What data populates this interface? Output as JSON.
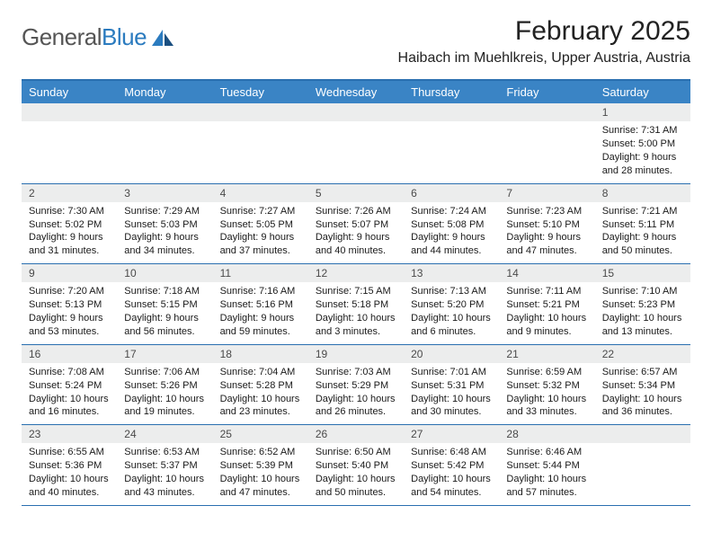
{
  "brand": {
    "name_part1": "General",
    "name_part2": "Blue"
  },
  "title": "February 2025",
  "location": "Haibach im Muehlkreis, Upper Austria, Austria",
  "colors": {
    "header_bg": "#3a84c5",
    "divider": "#2a6fb0",
    "daynum_bg": "#eceded",
    "logo_blue": "#2b7bbf",
    "logo_dark": "#1a4f80"
  },
  "day_headers": [
    "Sunday",
    "Monday",
    "Tuesday",
    "Wednesday",
    "Thursday",
    "Friday",
    "Saturday"
  ],
  "weeks": [
    {
      "nums": [
        "",
        "",
        "",
        "",
        "",
        "",
        "1"
      ],
      "cells": [
        null,
        null,
        null,
        null,
        null,
        null,
        {
          "sunrise": "7:31 AM",
          "sunset": "5:00 PM",
          "daylight": "9 hours and 28 minutes."
        }
      ]
    },
    {
      "nums": [
        "2",
        "3",
        "4",
        "5",
        "6",
        "7",
        "8"
      ],
      "cells": [
        {
          "sunrise": "7:30 AM",
          "sunset": "5:02 PM",
          "daylight": "9 hours and 31 minutes."
        },
        {
          "sunrise": "7:29 AM",
          "sunset": "5:03 PM",
          "daylight": "9 hours and 34 minutes."
        },
        {
          "sunrise": "7:27 AM",
          "sunset": "5:05 PM",
          "daylight": "9 hours and 37 minutes."
        },
        {
          "sunrise": "7:26 AM",
          "sunset": "5:07 PM",
          "daylight": "9 hours and 40 minutes."
        },
        {
          "sunrise": "7:24 AM",
          "sunset": "5:08 PM",
          "daylight": "9 hours and 44 minutes."
        },
        {
          "sunrise": "7:23 AM",
          "sunset": "5:10 PM",
          "daylight": "9 hours and 47 minutes."
        },
        {
          "sunrise": "7:21 AM",
          "sunset": "5:11 PM",
          "daylight": "9 hours and 50 minutes."
        }
      ]
    },
    {
      "nums": [
        "9",
        "10",
        "11",
        "12",
        "13",
        "14",
        "15"
      ],
      "cells": [
        {
          "sunrise": "7:20 AM",
          "sunset": "5:13 PM",
          "daylight": "9 hours and 53 minutes."
        },
        {
          "sunrise": "7:18 AM",
          "sunset": "5:15 PM",
          "daylight": "9 hours and 56 minutes."
        },
        {
          "sunrise": "7:16 AM",
          "sunset": "5:16 PM",
          "daylight": "9 hours and 59 minutes."
        },
        {
          "sunrise": "7:15 AM",
          "sunset": "5:18 PM",
          "daylight": "10 hours and 3 minutes."
        },
        {
          "sunrise": "7:13 AM",
          "sunset": "5:20 PM",
          "daylight": "10 hours and 6 minutes."
        },
        {
          "sunrise": "7:11 AM",
          "sunset": "5:21 PM",
          "daylight": "10 hours and 9 minutes."
        },
        {
          "sunrise": "7:10 AM",
          "sunset": "5:23 PM",
          "daylight": "10 hours and 13 minutes."
        }
      ]
    },
    {
      "nums": [
        "16",
        "17",
        "18",
        "19",
        "20",
        "21",
        "22"
      ],
      "cells": [
        {
          "sunrise": "7:08 AM",
          "sunset": "5:24 PM",
          "daylight": "10 hours and 16 minutes."
        },
        {
          "sunrise": "7:06 AM",
          "sunset": "5:26 PM",
          "daylight": "10 hours and 19 minutes."
        },
        {
          "sunrise": "7:04 AM",
          "sunset": "5:28 PM",
          "daylight": "10 hours and 23 minutes."
        },
        {
          "sunrise": "7:03 AM",
          "sunset": "5:29 PM",
          "daylight": "10 hours and 26 minutes."
        },
        {
          "sunrise": "7:01 AM",
          "sunset": "5:31 PM",
          "daylight": "10 hours and 30 minutes."
        },
        {
          "sunrise": "6:59 AM",
          "sunset": "5:32 PM",
          "daylight": "10 hours and 33 minutes."
        },
        {
          "sunrise": "6:57 AM",
          "sunset": "5:34 PM",
          "daylight": "10 hours and 36 minutes."
        }
      ]
    },
    {
      "nums": [
        "23",
        "24",
        "25",
        "26",
        "27",
        "28",
        ""
      ],
      "cells": [
        {
          "sunrise": "6:55 AM",
          "sunset": "5:36 PM",
          "daylight": "10 hours and 40 minutes."
        },
        {
          "sunrise": "6:53 AM",
          "sunset": "5:37 PM",
          "daylight": "10 hours and 43 minutes."
        },
        {
          "sunrise": "6:52 AM",
          "sunset": "5:39 PM",
          "daylight": "10 hours and 47 minutes."
        },
        {
          "sunrise": "6:50 AM",
          "sunset": "5:40 PM",
          "daylight": "10 hours and 50 minutes."
        },
        {
          "sunrise": "6:48 AM",
          "sunset": "5:42 PM",
          "daylight": "10 hours and 54 minutes."
        },
        {
          "sunrise": "6:46 AM",
          "sunset": "5:44 PM",
          "daylight": "10 hours and 57 minutes."
        },
        null
      ]
    }
  ],
  "labels": {
    "sunrise": "Sunrise:",
    "sunset": "Sunset:",
    "daylight": "Daylight:"
  }
}
